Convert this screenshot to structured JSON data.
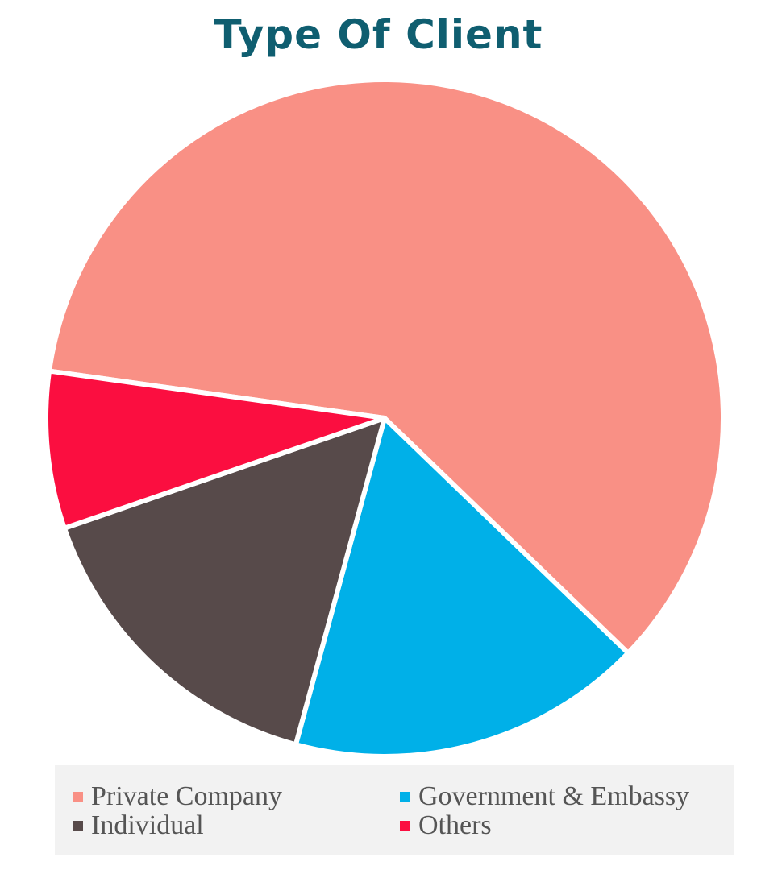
{
  "chart_data": {
    "type": "pie",
    "title": "Type Of Client",
    "slices": [
      {
        "label": "Private Company",
        "value": 60,
        "color": "#f99085"
      },
      {
        "label": "Government & Embassy",
        "value": 17,
        "color": "#00b0e8"
      },
      {
        "label": "Individual",
        "value": 15.5,
        "color": "#574a4a"
      },
      {
        "label": "Others",
        "value": 7.5,
        "color": "#fb0e40"
      }
    ],
    "legend_placement": "bottom",
    "legend": [
      {
        "label": "Private Company",
        "color": "#f99085"
      },
      {
        "label": "Government & Embassy",
        "color": "#00b0e8"
      },
      {
        "label": "Individual",
        "color": "#574a4a"
      },
      {
        "label": "Others",
        "color": "#fb0e40"
      }
    ]
  }
}
